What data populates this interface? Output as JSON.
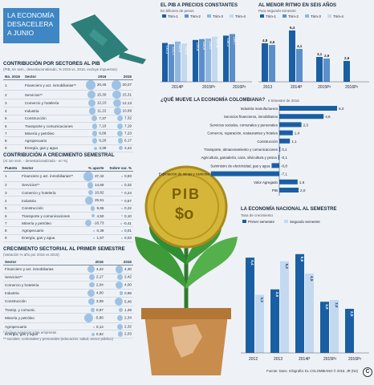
{
  "banner": {
    "text": "LA ECONOMÍA DESACELERA A JUNIO"
  },
  "sectors": {
    "title": "CONTRIBUCIÓN POR SECTORES AL PIB",
    "subtitle": "(PIB, ter sem., desestacionalizado, % 2015 vs. 2016, excluye impuestos)",
    "headers": [
      "No. 2016",
      "Sector",
      "2016",
      "2015"
    ],
    "rows": [
      [
        "1",
        "Financiero y act. inmobiliarias**",
        "20,45",
        "20,07"
      ],
      [
        "2",
        "Servicios**",
        "15,30",
        "15,31"
      ],
      [
        "3",
        "Comercio y hotelería",
        "12,10",
        "12,13"
      ],
      [
        "4",
        "Industria",
        "11,22",
        "10,99"
      ],
      [
        "5",
        "Construcción",
        "7,37",
        "7,32"
      ],
      [
        "6",
        "Transporte y comunicaciones",
        "7,10",
        "7,19"
      ],
      [
        "7",
        "Minería y petróleo",
        "6,66",
        "7,23"
      ],
      [
        "8",
        "Agropecuario",
        "6,20",
        "6,17"
      ],
      [
        "9",
        "Energía, gas y agua",
        "3,39",
        "3,44"
      ]
    ]
  },
  "growth": {
    "title": "CONTRIBUCIÓN A CRECIMIENTO SEMESTRAL",
    "subtitle": "(Al 1er sem. - desestacionalizado - en %)",
    "headers": [
      "Puesto",
      "Sector",
      "% aporte",
      "Sobre var. %"
    ],
    "rows": [
      [
        "1",
        "Financiero y act. inmobiliarias**",
        "37,42",
        "0,83"
      ],
      [
        "2",
        "Servicios**",
        "14,66",
        "0,32"
      ],
      [
        "3",
        "Comercio y hotelería",
        "10,82",
        "0,24"
      ],
      [
        "4",
        "Industria",
        "25,91",
        "0,57"
      ],
      [
        "5",
        "Construcción",
        "9,65",
        "0,22"
      ],
      [
        "6",
        "Transporte y comunicaciones",
        "4,50",
        "0,10"
      ],
      [
        "7",
        "Minería y petróleo",
        "-18,73",
        "-0,41"
      ],
      [
        "8",
        "Agropecuario",
        "0,39",
        "0,01"
      ],
      [
        "9",
        "Energía, gas y agua",
        "1,57",
        "0,03"
      ]
    ]
  },
  "sectoral": {
    "title": "CRECIMIENTO SECTORIAL AL PRIMER SEMESTRE",
    "subtitle": "(Variación % año por 2015 vs 2016)",
    "headers": [
      "Sector",
      "2016",
      "2015"
    ],
    "rows": [
      [
        "Financiero y act. inmobiliarias",
        "4,22",
        "4,30"
      ],
      [
        "Servicios**",
        "2,17",
        "2,42"
      ],
      [
        "Comercio y hotelería",
        "2,04",
        "4,00"
      ],
      [
        "Industria",
        "4,00",
        "0,96"
      ],
      [
        "Construcción",
        "3,09",
        "5,46"
      ],
      [
        "Transp. y comunic.",
        "0,97",
        "1,49"
      ],
      [
        "Minería y petróleo",
        "-5,86",
        "2,34"
      ],
      [
        "Agropecuario",
        "0,14",
        "2,32"
      ],
      [
        "Energía, gas y agua",
        "0,92",
        "2,03"
      ]
    ],
    "notes": [
      "* Incluye servicios a las empresas",
      "** sociales, comunales y personales (educación, salud, sector público)"
    ]
  },
  "pib_chart": {
    "title": "EL PIB A PRECIOS CONSTANTES",
    "subtitle": "En billones de pesos",
    "legend": [
      "Trim-1",
      "Trim-2",
      "Trim-3",
      "Trim-4"
    ],
    "colors": [
      "#1a5fa3",
      "#5b8fcc",
      "#8fb7e0",
      "#c3d9ef"
    ],
    "categories": [
      "2014P",
      "2015Pr",
      "2016Pr"
    ],
    "labels": [
      [
        "132,3",
        "131,2",
        "133,5",
        "131,8"
      ],
      [
        "134,8",
        "135,5",
        "136,0",
        "137,5"
      ],
      [
        "138,4",
        "139,7"
      ]
    ]
  },
  "slow_chart": {
    "title": "AL MENOR RITMO EN SEIS AÑOS",
    "subtitle": "Para segundo trimestre",
    "legend": [
      "Trim-1",
      "Trim-2",
      "Trim-3",
      "Trim-4"
    ],
    "colors": [
      "#1a5fa3",
      "#5b8fcc",
      "#8fb7e0",
      "#c3d9ef"
    ],
    "categories": [
      "2013",
      "2014P",
      "2015Pr",
      "2016Pr"
    ],
    "labels": [
      [
        "4,8",
        "4,6"
      ],
      [
        "6,4",
        "4,1"
      ],
      [
        "3,1",
        "2,9"
      ],
      [
        "2,6"
      ]
    ]
  },
  "chart_data": [
    {
      "type": "bar",
      "title": "¿QUÉ MUEVE LA ECONOMÍA COLOMBIANA?",
      "subtitle": "II trimestre de 2016",
      "categories": [
        "Industria manufacturera",
        "Servicios financieros, inmobiliarios",
        "Servicios sociales, comunales y personales",
        "Comercio, reparación, restaurantes y hoteles",
        "Construcción",
        "Transporte, almacenamiento y comunicaciones",
        "Agricultura, ganadería, caza, silvicultura y pesca",
        "Suministro de electricidad, gas y agua",
        "Explotación de minas y canteras",
        "Valor Agregado",
        "PIB"
      ],
      "values": [
        6.0,
        4.6,
        2.3,
        1.4,
        1.1,
        0.1,
        -0.1,
        -0.8,
        -7.1,
        1.9,
        2.0
      ],
      "value_labels": [
        "6,0",
        "4,6",
        "2,3",
        "1,4",
        "1,1",
        "0,1",
        "-0,1",
        "-0,8",
        "-7,1",
        "1,9",
        "2,0"
      ],
      "colors": {
        "positive": "#1a5fa3",
        "negative": "#1a5fa3",
        "pib": "#1a5fa3"
      }
    },
    {
      "type": "bar",
      "title": "LA ECONOMÍA NACIONAL AL SEMESTRE",
      "subtitle": "Tasa de crecimiento",
      "categories": [
        "2012",
        "2013",
        "2014P",
        "2015Pr",
        "2016Pr"
      ],
      "series": [
        {
          "name": "Primer semestre",
          "values": [
            5.4,
            3.6,
            5.6,
            2.9,
            2.5
          ],
          "labels": [
            "5,4",
            "3,6",
            "5,6",
            "2,9",
            "2,5"
          ]
        },
        {
          "name": "Segundo semestre",
          "values": [
            3.3,
            5.2,
            4.5,
            3.0,
            null
          ],
          "labels": [
            "3,3",
            "5,2",
            "4,5",
            "3,0",
            ""
          ]
        }
      ],
      "colors": [
        "#1a5fa3",
        "#c3d9ef"
      ],
      "ylim": [
        0,
        6
      ]
    }
  ],
  "illustration": {
    "coin_text": "PIB",
    "coin_symbol": "$o"
  },
  "footer": "Fuente: Dane. Infografía: EL COLOMBIANO © 2016. JR (N3)",
  "logo": "C"
}
